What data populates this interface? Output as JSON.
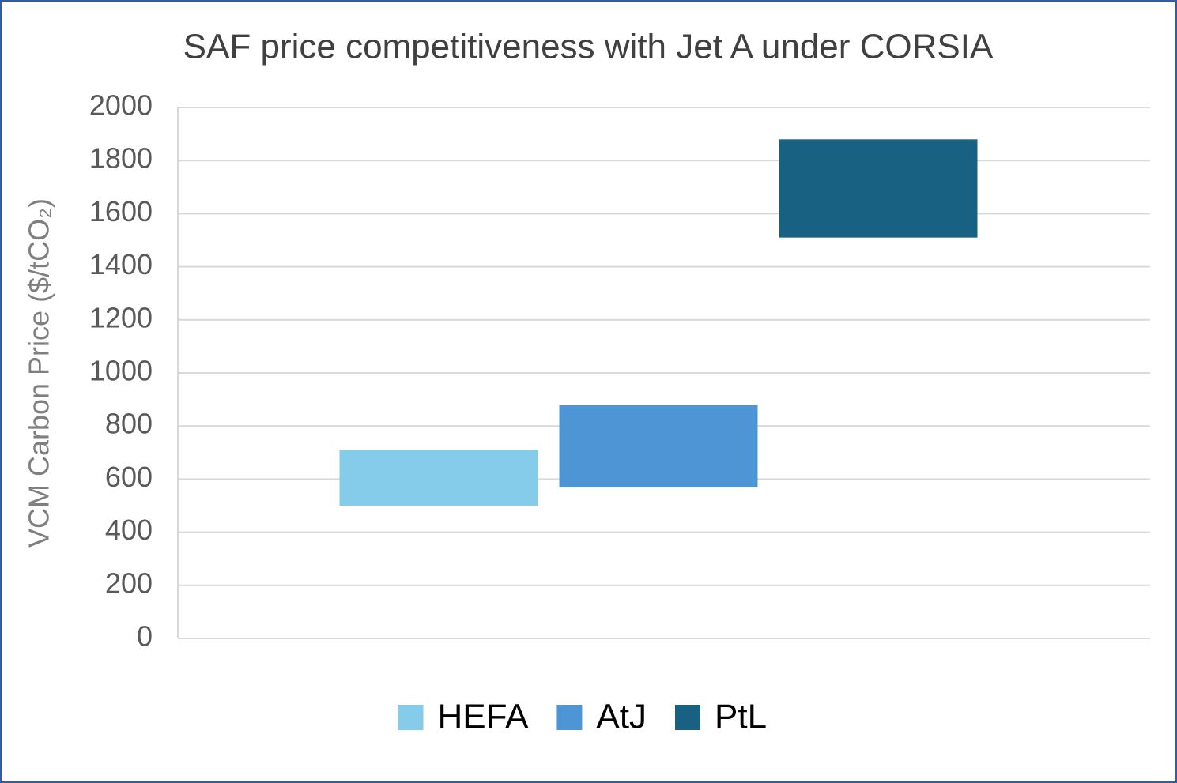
{
  "chart_data": {
    "type": "range_bar",
    "title": "SAF price competitiveness with Jet A under CORSIA",
    "y_label": "VCM Carbon Price ($/tCO₂)",
    "series": [
      {
        "name": "HEFA",
        "color": "#85cbea",
        "low": 500,
        "high": 710
      },
      {
        "name": "AtJ",
        "color": "#4e95d6",
        "low": 570,
        "high": 880
      },
      {
        "name": "PtL",
        "color": "#186182",
        "low": 1510,
        "high": 1880
      }
    ],
    "ylim": [
      0,
      2000
    ],
    "yticks": [
      0,
      200,
      400,
      600,
      800,
      1000,
      1200,
      1400,
      1600,
      1800,
      2000
    ],
    "grid": true,
    "legend": "bottom"
  }
}
